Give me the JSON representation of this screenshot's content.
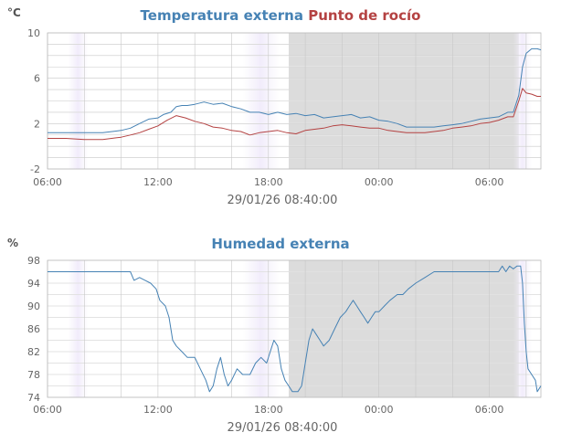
{
  "chart_data": [
    {
      "type": "line",
      "title_parts": [
        {
          "text": "Temperatura externa",
          "color": "#4682b4"
        },
        {
          "text": "Punto de rocío",
          "color": "#b44242"
        }
      ],
      "unit": "°C",
      "timestamp": "29/01/26 08:40:00",
      "x_ticks": [
        "06:00",
        "12:00",
        "18:00",
        "00:00",
        "06:00"
      ],
      "x_tick_hours": [
        0,
        6,
        12,
        18,
        24
      ],
      "xlim": [
        0,
        26.8
      ],
      "ylim": [
        -2,
        10
      ],
      "y_ticks": [
        "-2",
        "2",
        "6",
        "10"
      ],
      "y_tick_values": [
        -2,
        2,
        6,
        10
      ],
      "grid": true,
      "series": [
        {
          "color": "#4682b4",
          "points": [
            [
              0,
              1.2
            ],
            [
              1,
              1.2
            ],
            [
              2,
              1.2
            ],
            [
              3,
              1.2
            ],
            [
              4,
              1.4
            ],
            [
              4.5,
              1.6
            ],
            [
              5,
              2.0
            ],
            [
              5.5,
              2.4
            ],
            [
              6,
              2.5
            ],
            [
              6.3,
              2.8
            ],
            [
              6.7,
              3.0
            ],
            [
              7,
              3.5
            ],
            [
              7.3,
              3.6
            ],
            [
              7.6,
              3.6
            ],
            [
              8,
              3.7
            ],
            [
              8.5,
              3.9
            ],
            [
              9,
              3.7
            ],
            [
              9.5,
              3.8
            ],
            [
              10,
              3.5
            ],
            [
              10.5,
              3.3
            ],
            [
              11,
              3.0
            ],
            [
              11.5,
              3.0
            ],
            [
              12,
              2.8
            ],
            [
              12.5,
              3.0
            ],
            [
              13,
              2.8
            ],
            [
              13.5,
              2.9
            ],
            [
              14,
              2.7
            ],
            [
              14.5,
              2.8
            ],
            [
              15,
              2.5
            ],
            [
              15.5,
              2.6
            ],
            [
              16,
              2.7
            ],
            [
              16.5,
              2.8
            ],
            [
              17,
              2.5
            ],
            [
              17.5,
              2.6
            ],
            [
              18,
              2.3
            ],
            [
              18.5,
              2.2
            ],
            [
              19,
              2.0
            ],
            [
              19.5,
              1.7
            ],
            [
              20,
              1.7
            ],
            [
              20.5,
              1.7
            ],
            [
              21,
              1.7
            ],
            [
              21.5,
              1.8
            ],
            [
              22,
              1.9
            ],
            [
              22.5,
              2.0
            ],
            [
              23,
              2.2
            ],
            [
              23.5,
              2.4
            ],
            [
              24,
              2.5
            ],
            [
              24.5,
              2.6
            ],
            [
              25,
              3.0
            ],
            [
              25.3,
              3.0
            ],
            [
              25.6,
              4.5
            ],
            [
              25.8,
              7.0
            ],
            [
              26,
              8.2
            ],
            [
              26.3,
              8.6
            ],
            [
              26.6,
              8.6
            ],
            [
              26.8,
              8.5
            ]
          ]
        },
        {
          "color": "#b44242",
          "points": [
            [
              0,
              0.7
            ],
            [
              1,
              0.7
            ],
            [
              2,
              0.6
            ],
            [
              3,
              0.6
            ],
            [
              4,
              0.8
            ],
            [
              4.5,
              1.0
            ],
            [
              5,
              1.2
            ],
            [
              5.5,
              1.5
            ],
            [
              6,
              1.8
            ],
            [
              6.5,
              2.3
            ],
            [
              7,
              2.7
            ],
            [
              7.5,
              2.5
            ],
            [
              8,
              2.2
            ],
            [
              8.5,
              2.0
            ],
            [
              9,
              1.7
            ],
            [
              9.5,
              1.6
            ],
            [
              10,
              1.4
            ],
            [
              10.5,
              1.3
            ],
            [
              11,
              1.0
            ],
            [
              11.5,
              1.2
            ],
            [
              12,
              1.3
            ],
            [
              12.5,
              1.4
            ],
            [
              13,
              1.2
            ],
            [
              13.5,
              1.1
            ],
            [
              14,
              1.4
            ],
            [
              14.5,
              1.5
            ],
            [
              15,
              1.6
            ],
            [
              15.5,
              1.8
            ],
            [
              16,
              1.9
            ],
            [
              16.5,
              1.8
            ],
            [
              17,
              1.7
            ],
            [
              17.5,
              1.6
            ],
            [
              18,
              1.6
            ],
            [
              18.5,
              1.4
            ],
            [
              19,
              1.3
            ],
            [
              19.5,
              1.2
            ],
            [
              20,
              1.2
            ],
            [
              20.5,
              1.2
            ],
            [
              21,
              1.3
            ],
            [
              21.5,
              1.4
            ],
            [
              22,
              1.6
            ],
            [
              22.5,
              1.7
            ],
            [
              23,
              1.8
            ],
            [
              23.5,
              2.0
            ],
            [
              24,
              2.1
            ],
            [
              24.5,
              2.3
            ],
            [
              25,
              2.6
            ],
            [
              25.3,
              2.6
            ],
            [
              25.6,
              4.0
            ],
            [
              25.8,
              5.1
            ],
            [
              26,
              4.7
            ],
            [
              26.3,
              4.6
            ],
            [
              26.6,
              4.4
            ],
            [
              26.8,
              4.4
            ]
          ]
        }
      ]
    },
    {
      "type": "line",
      "title_parts": [
        {
          "text": "Humedad externa",
          "color": "#4682b4"
        }
      ],
      "unit": "%",
      "timestamp": "29/01/26 08:40:00",
      "x_ticks": [
        "06:00",
        "12:00",
        "18:00",
        "00:00",
        "06:00"
      ],
      "x_tick_hours": [
        0,
        6,
        12,
        18,
        24
      ],
      "xlim": [
        0,
        26.8
      ],
      "ylim": [
        74,
        98
      ],
      "y_ticks": [
        "74",
        "78",
        "82",
        "86",
        "90",
        "94",
        "98"
      ],
      "y_tick_values": [
        74,
        78,
        82,
        86,
        90,
        94,
        98
      ],
      "grid": true,
      "series": [
        {
          "color": "#4682b4",
          "points": [
            [
              0,
              96
            ],
            [
              4.5,
              96
            ],
            [
              4.7,
              94.5
            ],
            [
              5,
              95
            ],
            [
              5.3,
              94.5
            ],
            [
              5.6,
              94
            ],
            [
              5.9,
              93
            ],
            [
              6.1,
              91
            ],
            [
              6.4,
              90
            ],
            [
              6.6,
              88
            ],
            [
              6.8,
              84
            ],
            [
              7,
              83
            ],
            [
              7.3,
              82
            ],
            [
              7.6,
              81
            ],
            [
              8,
              81
            ],
            [
              8.3,
              79
            ],
            [
              8.6,
              77
            ],
            [
              8.8,
              75
            ],
            [
              9,
              76
            ],
            [
              9.2,
              79
            ],
            [
              9.4,
              81
            ],
            [
              9.6,
              78
            ],
            [
              9.8,
              76
            ],
            [
              10,
              77
            ],
            [
              10.3,
              79
            ],
            [
              10.6,
              78
            ],
            [
              11,
              78
            ],
            [
              11.3,
              80
            ],
            [
              11.6,
              81
            ],
            [
              11.9,
              80
            ],
            [
              12.1,
              82
            ],
            [
              12.3,
              84
            ],
            [
              12.5,
              83
            ],
            [
              12.7,
              79
            ],
            [
              12.9,
              77
            ],
            [
              13.1,
              76
            ],
            [
              13.3,
              75
            ],
            [
              13.6,
              75
            ],
            [
              13.8,
              76
            ],
            [
              14,
              80
            ],
            [
              14.2,
              84
            ],
            [
              14.4,
              86
            ],
            [
              14.6,
              85
            ],
            [
              14.8,
              84
            ],
            [
              15,
              83
            ],
            [
              15.3,
              84
            ],
            [
              15.6,
              86
            ],
            [
              15.9,
              88
            ],
            [
              16.2,
              89
            ],
            [
              16.4,
              90
            ],
            [
              16.6,
              91
            ],
            [
              16.8,
              90
            ],
            [
              17,
              89
            ],
            [
              17.2,
              88
            ],
            [
              17.4,
              87
            ],
            [
              17.6,
              88
            ],
            [
              17.8,
              89
            ],
            [
              18,
              89
            ],
            [
              18.3,
              90
            ],
            [
              18.6,
              91
            ],
            [
              19,
              92
            ],
            [
              19.3,
              92
            ],
            [
              19.6,
              93
            ],
            [
              20,
              94
            ],
            [
              20.5,
              95
            ],
            [
              21,
              96
            ],
            [
              21.5,
              96
            ],
            [
              22,
              96
            ],
            [
              23,
              96
            ],
            [
              24,
              96
            ],
            [
              24.5,
              96
            ],
            [
              24.7,
              97
            ],
            [
              24.9,
              96
            ],
            [
              25.1,
              97
            ],
            [
              25.3,
              96.5
            ],
            [
              25.5,
              97
            ],
            [
              25.7,
              97
            ],
            [
              25.8,
              94
            ],
            [
              25.9,
              87
            ],
            [
              26,
              82
            ],
            [
              26.1,
              79
            ],
            [
              26.3,
              78
            ],
            [
              26.5,
              77
            ],
            [
              26.6,
              75
            ],
            [
              26.8,
              76
            ]
          ]
        }
      ]
    }
  ]
}
